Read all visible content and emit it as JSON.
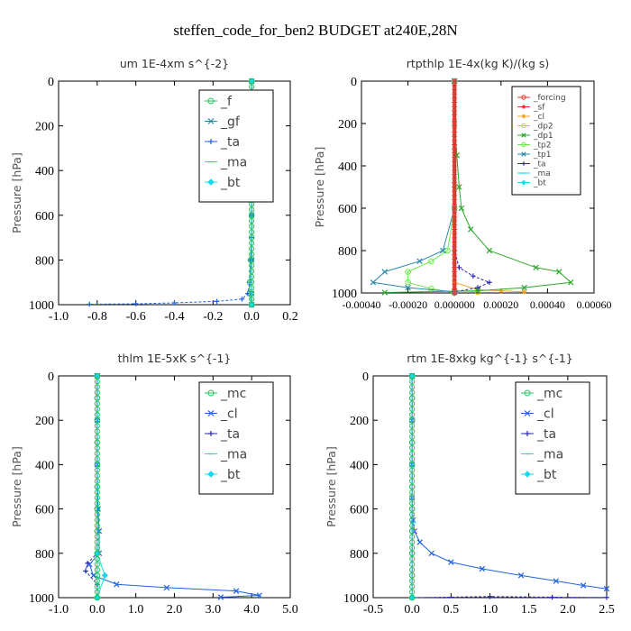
{
  "title": "steffen_code_for_ben2  BUDGET at240E,28N",
  "colors": {
    "green": "#22c55e",
    "red": "#e8322a",
    "blue": "#1f63e0",
    "navy": "#2a2ab0",
    "cyan": "#16d8f0",
    "teal": "#2a8aa8",
    "darkgreen": "#2aa82a",
    "orange": "#f0a020",
    "yellow": "#e6c700",
    "lime": "#66ee44",
    "mint": "#33e0a0",
    "purple": "#9a60d0"
  },
  "chart_data": [
    {
      "type": "line",
      "title": "um  1E-4xm s^{-2}",
      "ylabel": "Pressure [hPa]",
      "xlim": [
        -1.0,
        0.2
      ],
      "ylim": [
        1000,
        0
      ],
      "xticks": [
        "-1.0",
        "-0.8",
        "-0.6",
        "-0.4",
        "-0.2",
        "0.0",
        "0.2"
      ],
      "yticks": [
        "0",
        "200",
        "400",
        "600",
        "800",
        "1000"
      ],
      "legend": {
        "position": "top-right",
        "entries": [
          "_f",
          "_gf",
          "_ta",
          "_ma",
          "_bt"
        ]
      },
      "series": [
        {
          "name": "_f",
          "color": "green",
          "marker": "circle",
          "points": [
            [
              0,
              0
            ],
            [
              0,
              100
            ],
            [
              0,
              200
            ],
            [
              0,
              300
            ],
            [
              0,
              400
            ],
            [
              0,
              500
            ],
            [
              0,
              600
            ],
            [
              0,
              700
            ],
            [
              -0.005,
              800
            ],
            [
              -0.01,
              900
            ],
            [
              -0.01,
              950
            ],
            [
              0,
              1000
            ]
          ]
        },
        {
          "name": "_gf",
          "color": "teal",
          "marker": "x",
          "points": [
            [
              0,
              0
            ],
            [
              0,
              200
            ],
            [
              0,
              400
            ],
            [
              0,
              600
            ],
            [
              0,
              800
            ],
            [
              0,
              950
            ],
            [
              0,
              1000
            ]
          ]
        },
        {
          "name": "_ta",
          "color": "blue",
          "marker": "plus",
          "points": [
            [
              0,
              0
            ],
            [
              0,
              200
            ],
            [
              0,
              400
            ],
            [
              0,
              600
            ],
            [
              0,
              700
            ],
            [
              -0.005,
              800
            ],
            [
              -0.01,
              900
            ],
            [
              -0.02,
              950
            ],
            [
              -0.05,
              975
            ],
            [
              -0.18,
              985
            ],
            [
              -0.4,
              992
            ],
            [
              -0.6,
              996
            ],
            [
              -0.84,
              998
            ]
          ]
        },
        {
          "name": "_ma",
          "color": "cyan",
          "marker": "dash",
          "points": [
            [
              0,
              0
            ],
            [
              0,
              500
            ],
            [
              0,
              1000
            ]
          ]
        },
        {
          "name": "_bt",
          "color": "cyan",
          "marker": "diamond",
          "points": [
            [
              0,
              0
            ],
            [
              0,
              500
            ],
            [
              0,
              1000
            ]
          ]
        }
      ]
    },
    {
      "type": "line",
      "title": "rtpthlp  1E-4x(kg K)/(kg s)",
      "ylabel": "Pressure [hPa]",
      "xlim": [
        -0.0004,
        0.0006
      ],
      "ylim": [
        1000,
        0
      ],
      "xticks": [
        "-0.00040",
        "-0.00020",
        "0.000000",
        "0.00020",
        "0.00040",
        "0.00060"
      ],
      "yticks": [
        "0",
        "200",
        "400",
        "600",
        "800",
        "1000"
      ],
      "legend": {
        "position": "top-right",
        "entries": [
          "_forcing",
          "_sf",
          "_cl",
          "_dp2",
          "_dp1",
          "_tp2",
          "_tp1",
          "_ta",
          "_ma",
          "_bt"
        ]
      },
      "series": [
        {
          "name": "_forcing",
          "color": "red",
          "marker": "circle",
          "points": [
            [
              0,
              0
            ],
            [
              0,
              1000
            ]
          ]
        },
        {
          "name": "_sf",
          "color": "red",
          "marker": "star",
          "points": [
            [
              0,
              0
            ],
            [
              0,
              1000
            ]
          ]
        },
        {
          "name": "_cl",
          "color": "orange",
          "marker": "star",
          "points": [
            [
              0,
              0
            ],
            [
              0,
              950
            ],
            [
              0.0001,
              985
            ],
            [
              0.0002,
              990
            ],
            [
              0.0003,
              995
            ]
          ]
        },
        {
          "name": "_dp2",
          "color": "yellow",
          "marker": "circle",
          "points": [
            [
              0,
              0
            ],
            [
              0,
              990
            ],
            [
              0.0001,
              995
            ]
          ]
        },
        {
          "name": "_dp1",
          "color": "darkgreen",
          "marker": "x",
          "points": [
            [
              0,
              0
            ],
            [
              0,
              200
            ],
            [
              1e-05,
              350
            ],
            [
              2e-05,
              500
            ],
            [
              3e-05,
              600
            ],
            [
              7e-05,
              700
            ],
            [
              0.00015,
              800
            ],
            [
              0.00035,
              880
            ],
            [
              0.00045,
              900
            ],
            [
              0.0005,
              950
            ],
            [
              0.0003,
              975
            ],
            [
              0.0001,
              990
            ],
            [
              -0.0003,
              998
            ]
          ]
        },
        {
          "name": "_tp2",
          "color": "lime",
          "marker": "circle",
          "points": [
            [
              0,
              0
            ],
            [
              0,
              600
            ],
            [
              -3e-05,
              800
            ],
            [
              -0.0001,
              850
            ],
            [
              -0.0002,
              900
            ],
            [
              -0.0002,
              950
            ],
            [
              -0.0001,
              980
            ],
            [
              0,
              1000
            ]
          ]
        },
        {
          "name": "_tp1",
          "color": "teal",
          "marker": "x",
          "points": [
            [
              0,
              0
            ],
            [
              0,
              600
            ],
            [
              -5e-05,
              800
            ],
            [
              -0.00015,
              850
            ],
            [
              -0.0003,
              900
            ],
            [
              -0.00035,
              950
            ],
            [
              -0.0002,
              975
            ],
            [
              0,
              995
            ]
          ]
        },
        {
          "name": "_ta",
          "color": "navy",
          "marker": "plus",
          "points": [
            [
              0,
              0
            ],
            [
              0,
              800
            ],
            [
              2e-05,
              880
            ],
            [
              8e-05,
              920
            ],
            [
              0.00015,
              950
            ],
            [
              0.0001,
              975
            ],
            [
              0,
              995
            ]
          ]
        },
        {
          "name": "_ma",
          "color": "cyan",
          "marker": "dash",
          "points": [
            [
              0,
              0
            ],
            [
              0,
              1000
            ]
          ]
        },
        {
          "name": "_bt",
          "color": "cyan",
          "marker": "diamond",
          "points": [
            [
              0,
              0
            ],
            [
              0,
              1000
            ]
          ]
        }
      ]
    },
    {
      "type": "line",
      "title": "thlm  1E-5xK s^{-1}",
      "ylabel": "Pressure [hPa]",
      "xlim": [
        -1.0,
        5.0
      ],
      "ylim": [
        1000,
        0
      ],
      "xticks": [
        "-1.0",
        "0.0",
        "1.0",
        "2.0",
        "3.0",
        "4.0",
        "5.0"
      ],
      "yticks": [
        "0",
        "200",
        "400",
        "600",
        "800",
        "1000"
      ],
      "legend": {
        "position": "top-right",
        "entries": [
          "_mc",
          "_cl",
          "_ta",
          "_ma",
          "_bt"
        ]
      },
      "series": [
        {
          "name": "_mc",
          "color": "green",
          "marker": "circle",
          "points": [
            [
              0,
              0
            ],
            [
              0,
              100
            ],
            [
              0,
              200
            ],
            [
              0,
              300
            ],
            [
              0,
              400
            ],
            [
              0,
              500
            ],
            [
              0,
              600
            ],
            [
              0,
              700
            ],
            [
              0,
              800
            ],
            [
              0,
              900
            ],
            [
              0,
              1000
            ]
          ]
        },
        {
          "name": "_cl",
          "color": "blue",
          "marker": "x",
          "points": [
            [
              0,
              0
            ],
            [
              0,
              200
            ],
            [
              0,
              400
            ],
            [
              0.02,
              600
            ],
            [
              0.05,
              700
            ],
            [
              0.05,
              800
            ],
            [
              -0.2,
              850
            ],
            [
              -0.1,
              900
            ],
            [
              0.5,
              940
            ],
            [
              1.8,
              955
            ],
            [
              3.6,
              970
            ],
            [
              4.2,
              990
            ],
            [
              3.2,
              998
            ]
          ]
        },
        {
          "name": "_ta",
          "color": "navy",
          "marker": "plus",
          "points": [
            [
              0,
              0
            ],
            [
              0,
              800
            ],
            [
              -0.25,
              845
            ],
            [
              -0.3,
              880
            ],
            [
              0,
              940
            ],
            [
              0,
              1000
            ]
          ]
        },
        {
          "name": "_ma",
          "color": "cyan",
          "marker": "dash",
          "points": [
            [
              0,
              0
            ],
            [
              0,
              1000
            ]
          ]
        },
        {
          "name": "_bt",
          "color": "cyan",
          "marker": "diamond",
          "points": [
            [
              0,
              0
            ],
            [
              0,
              800
            ],
            [
              0.2,
              900
            ],
            [
              0,
              1000
            ]
          ]
        }
      ]
    },
    {
      "type": "line",
      "title": "rtm  1E-8xkg kg^{-1} s^{-1}",
      "ylabel": "Pressure [hPa]",
      "xlim": [
        -0.5,
        2.5
      ],
      "ylim": [
        1000,
        0
      ],
      "xticks": [
        "-0.5",
        "0.0",
        "0.5",
        "1.0",
        "1.5",
        "2.0",
        "2.5"
      ],
      "yticks": [
        "0",
        "200",
        "400",
        "600",
        "800",
        "1000"
      ],
      "legend": {
        "position": "top-right",
        "entries": [
          "_mc",
          "_cl",
          "_ta",
          "_ma",
          "_bt"
        ]
      },
      "series": [
        {
          "name": "_mc",
          "color": "green",
          "marker": "circle",
          "points": [
            [
              0,
              0
            ],
            [
              0,
              100
            ],
            [
              0,
              200
            ],
            [
              0,
              300
            ],
            [
              0,
              400
            ],
            [
              0,
              500
            ],
            [
              0,
              600
            ],
            [
              0,
              700
            ],
            [
              0,
              800
            ],
            [
              0,
              900
            ],
            [
              0,
              1000
            ]
          ]
        },
        {
          "name": "_cl",
          "color": "blue",
          "marker": "x",
          "points": [
            [
              0,
              0
            ],
            [
              0,
              200
            ],
            [
              0,
              400
            ],
            [
              0,
              550
            ],
            [
              0.01,
              650
            ],
            [
              0.03,
              700
            ],
            [
              0.1,
              750
            ],
            [
              0.25,
              800
            ],
            [
              0.5,
              840
            ],
            [
              0.9,
              870
            ],
            [
              1.4,
              900
            ],
            [
              1.85,
              925
            ],
            [
              2.2,
              945
            ],
            [
              2.5,
              960
            ]
          ]
        },
        {
          "name": "_ta",
          "color": "navy",
          "marker": "plus",
          "points": [
            [
              0,
              0
            ],
            [
              0,
              1000
            ],
            [
              1.0,
              995
            ],
            [
              1.8,
              998
            ],
            [
              2.5,
              999
            ]
          ]
        },
        {
          "name": "_ma",
          "color": "cyan",
          "marker": "dash",
          "points": [
            [
              0,
              0
            ],
            [
              0,
              1000
            ]
          ]
        },
        {
          "name": "_bt",
          "color": "cyan",
          "marker": "diamond",
          "points": [
            [
              0,
              0
            ],
            [
              0,
              1000
            ]
          ]
        }
      ]
    }
  ]
}
